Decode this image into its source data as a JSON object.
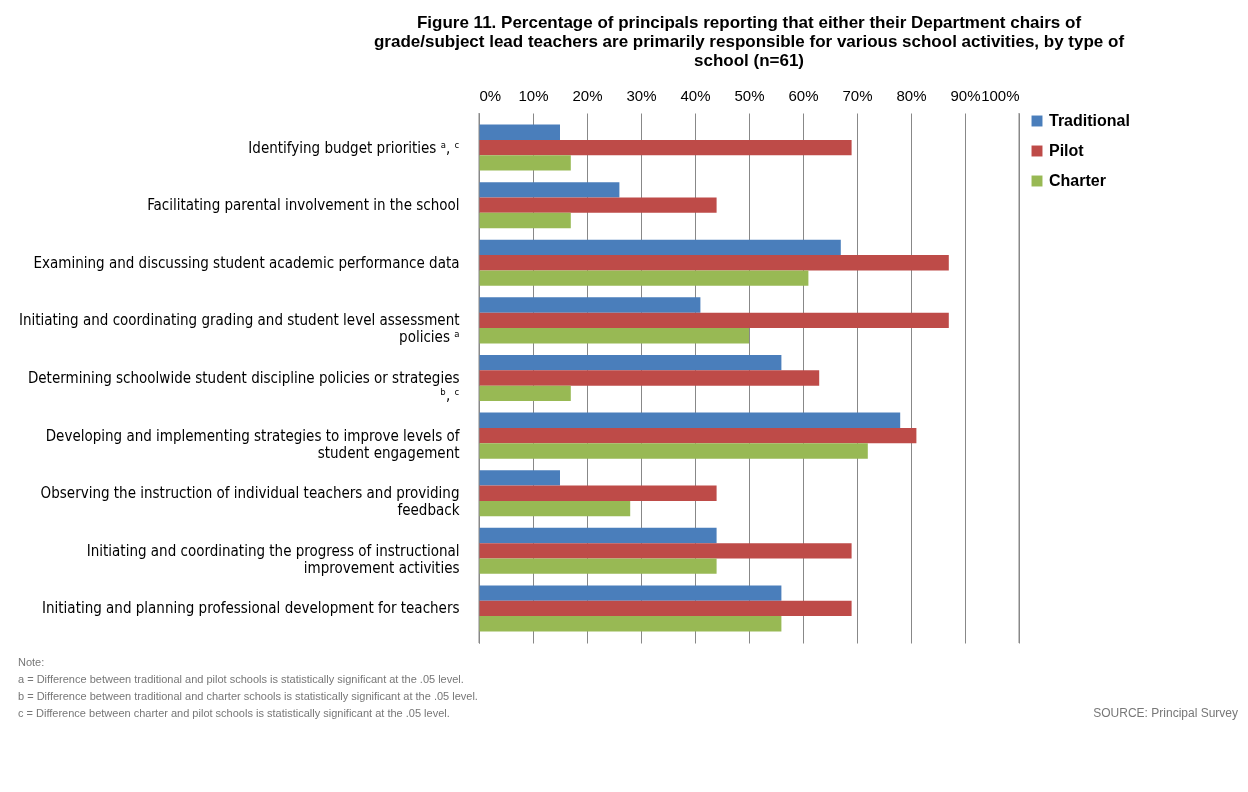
{
  "chart_data": {
    "type": "bar",
    "orientation": "horizontal",
    "title": "Figure 11. Percentage of principals reporting that either their Department chairs of grade/subject lead teachers are primarily responsible for various school activities, by type of school (n=61)",
    "categories": [
      "Identifying budget priorities ᵃ, ᶜ",
      "Facilitating parental involvement in the school",
      "Examining and discussing student academic performance data",
      "Initiating and coordinating grading and student level assessment policies ᵃ",
      "Determining schoolwide student discipline policies or strategies ᵇ, ᶜ",
      "Developing and implementing strategies to improve levels of student engagement",
      "Observing the instruction of individual teachers and providing feedback",
      "Initiating and coordinating the progress of instructional improvement activities",
      "Initiating and planning professional development for teachers"
    ],
    "series": [
      {
        "name": "Traditional",
        "color": "#4a7ebb",
        "values": [
          15,
          26,
          67,
          41,
          56,
          78,
          15,
          44,
          56
        ]
      },
      {
        "name": "Pilot",
        "color": "#be4b48",
        "values": [
          69,
          44,
          87,
          87,
          63,
          81,
          44,
          69,
          69
        ]
      },
      {
        "name": "Charter",
        "color": "#98b954",
        "values": [
          17,
          17,
          61,
          50,
          17,
          72,
          28,
          44,
          56
        ]
      }
    ],
    "xlim": [
      0,
      100
    ],
    "xticks": [
      {
        "value": 0,
        "label": "0%"
      },
      {
        "value": 10,
        "label": "10%"
      },
      {
        "value": 20,
        "label": "20%"
      },
      {
        "value": 30,
        "label": "30%"
      },
      {
        "value": 40,
        "label": "40%"
      },
      {
        "value": 50,
        "label": "50%"
      },
      {
        "value": 60,
        "label": "60%"
      },
      {
        "value": 70,
        "label": "70%"
      },
      {
        "value": 80,
        "label": "80%"
      },
      {
        "value": 90,
        "label": "90%"
      },
      {
        "value": 100,
        "label": "100%"
      }
    ],
    "grid": "x",
    "legend": "right",
    "annotations": [
      "Note:",
      "a = Difference between traditional and pilot schools is statistically significant at the .05 level.",
      "b = Difference between traditional and charter schools is statistically significant at the .05 level.",
      "c = Difference between charter and pilot schools is statistically significant at the .05 level.",
      "SOURCE: Principal Survey"
    ]
  }
}
